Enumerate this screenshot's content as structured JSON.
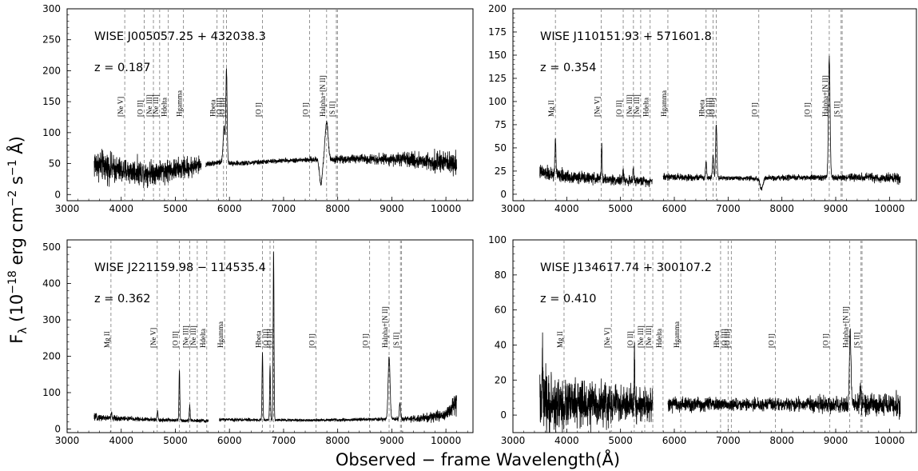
{
  "figure": {
    "xlabel": "Observed − frame Wavelength(Å)",
    "ylabel_main": "F",
    "ylabel_sub": "λ",
    "ylabel_units": " (10",
    "ylabel_exp1": "−18",
    "ylabel_mid": " erg cm",
    "ylabel_exp2": "−2",
    "ylabel_s": " s",
    "ylabel_exp3": "−1",
    "ylabel_end": " Å)"
  },
  "chart_data": [
    {
      "type": "line",
      "object": "WISE J005057.25 + 432038.3",
      "redshift": "z  =  0.187",
      "xlim": [
        3000,
        10500
      ],
      "ylim": [
        -10,
        300
      ],
      "xticks": [
        3000,
        4000,
        5000,
        6000,
        7000,
        8000,
        9000,
        10000
      ],
      "yticks": [
        0,
        50,
        100,
        150,
        200,
        250,
        300
      ],
      "continuum": [
        [
          3500,
          50
        ],
        [
          4000,
          38
        ],
        [
          4500,
          36
        ],
        [
          5000,
          40
        ],
        [
          5500,
          48
        ],
        [
          5800,
          52
        ],
        [
          6200,
          50
        ],
        [
          7000,
          55
        ],
        [
          7500,
          56
        ],
        [
          8000,
          57
        ],
        [
          8500,
          58
        ],
        [
          9000,
          57
        ],
        [
          9500,
          55
        ],
        [
          10200,
          50
        ]
      ],
      "noise": [
        [
          3500,
          22
        ],
        [
          4000,
          18
        ],
        [
          5400,
          14
        ],
        [
          5550,
          4
        ],
        [
          7000,
          3
        ],
        [
          8000,
          5
        ],
        [
          9000,
          8
        ],
        [
          10200,
          16
        ]
      ],
      "gaps": [
        [
          5480,
          5560
        ]
      ],
      "emission": [
        {
          "x": 5900,
          "h": 55,
          "w": 18
        },
        {
          "x": 5945,
          "h": 148,
          "w": 12
        },
        {
          "x": 7795,
          "h": 60,
          "w": 28
        }
      ],
      "absorption": [
        {
          "x": 7690,
          "h": 40,
          "w": 25
        }
      ],
      "lines": [
        {
          "label": "[Ne V]",
          "x": 4065
        },
        {
          "label": "[O II]",
          "x": 4425
        },
        {
          "label": "[Ne III]",
          "x": 4595
        },
        {
          "label": "[Ne III]",
          "x": 4710
        },
        {
          "label": "Hdelta",
          "x": 4870
        },
        {
          "label": "Hgamma",
          "x": 5150
        },
        {
          "label": "Hbeta",
          "x": 5770
        },
        {
          "label": "[O III]",
          "x": 5890
        },
        {
          "label": "[O III]",
          "x": 5945
        },
        {
          "label": "[O I]",
          "x": 6610
        },
        {
          "label": "[O I]",
          "x": 7480
        },
        {
          "label": "Halpha+[N II]",
          "x": 7795
        },
        {
          "label": "[S II]",
          "x": 7975
        },
        {
          "label": "",
          "x": 7995
        }
      ]
    },
    {
      "type": "line",
      "object": "WISE J110151.93 + 571601.8",
      "redshift": "z  =  0.354",
      "xlim": [
        3000,
        10500
      ],
      "ylim": [
        -7,
        200
      ],
      "xticks": [
        3000,
        4000,
        5000,
        6000,
        7000,
        8000,
        9000,
        10000
      ],
      "yticks": [
        0,
        25,
        50,
        75,
        100,
        125,
        150,
        175,
        200
      ],
      "continuum": [
        [
          3500,
          24
        ],
        [
          3800,
          20
        ],
        [
          4500,
          17
        ],
        [
          5000,
          15
        ],
        [
          5600,
          14
        ],
        [
          5800,
          19
        ],
        [
          6500,
          18
        ],
        [
          7500,
          17
        ],
        [
          8500,
          18
        ],
        [
          9500,
          18
        ],
        [
          10200,
          17
        ]
      ],
      "noise": [
        [
          3500,
          7
        ],
        [
          4500,
          5
        ],
        [
          5600,
          4
        ],
        [
          7000,
          2
        ],
        [
          9000,
          3
        ],
        [
          10200,
          5
        ]
      ],
      "gaps": [
        [
          5590,
          5790
        ]
      ],
      "emission": [
        {
          "x": 3790,
          "h": 40,
          "w": 10
        },
        {
          "x": 4650,
          "h": 37,
          "w": 8
        },
        {
          "x": 5050,
          "h": 10,
          "w": 8
        },
        {
          "x": 5240,
          "h": 12,
          "w": 8
        },
        {
          "x": 6590,
          "h": 18,
          "w": 10
        },
        {
          "x": 6720,
          "h": 25,
          "w": 12
        },
        {
          "x": 6780,
          "h": 58,
          "w": 12
        },
        {
          "x": 8880,
          "h": 128,
          "w": 15
        }
      ],
      "absorption": [
        {
          "x": 7620,
          "h": 12,
          "w": 25
        }
      ],
      "lines": [
        {
          "label": "Mg II",
          "x": 3790
        },
        {
          "label": "[Ne V]",
          "x": 4640
        },
        {
          "label": "[O II]",
          "x": 5050
        },
        {
          "label": "[Ne III]",
          "x": 5240
        },
        {
          "label": "[Ne III]",
          "x": 5375
        },
        {
          "label": "Hdelta",
          "x": 5550
        },
        {
          "label": "Hgamma",
          "x": 5880
        },
        {
          "label": "Hbeta",
          "x": 6590
        },
        {
          "label": "[O III]",
          "x": 6720
        },
        {
          "label": "[O III]",
          "x": 6780
        },
        {
          "label": "[O I]",
          "x": 7570
        },
        {
          "label": "[O I]",
          "x": 8550
        },
        {
          "label": "Halpha+[N II]",
          "x": 8880
        },
        {
          "label": "[S II]",
          "x": 9100
        },
        {
          "label": "",
          "x": 9120
        }
      ]
    },
    {
      "type": "line",
      "object": "WISE J221159.98 − 114535.4",
      "redshift": "z  =  0.362",
      "xlim": [
        3000,
        10500
      ],
      "ylim": [
        -10,
        520
      ],
      "xticks": [
        3000,
        4000,
        5000,
        6000,
        7000,
        8000,
        9000,
        10000
      ],
      "yticks": [
        0,
        100,
        200,
        300,
        400,
        500
      ],
      "continuum": [
        [
          3500,
          32
        ],
        [
          3800,
          30
        ],
        [
          4500,
          26
        ],
        [
          5000,
          24
        ],
        [
          5600,
          22
        ],
        [
          5800,
          26
        ],
        [
          6500,
          25
        ],
        [
          7500,
          24
        ],
        [
          8500,
          26
        ],
        [
          9500,
          28
        ],
        [
          10000,
          40
        ],
        [
          10200,
          75
        ]
      ],
      "noise": [
        [
          3500,
          8
        ],
        [
          4500,
          5
        ],
        [
          5600,
          4
        ],
        [
          7000,
          3
        ],
        [
          9000,
          4
        ],
        [
          10000,
          15
        ],
        [
          10200,
          25
        ]
      ],
      "gaps": [
        [
          5610,
          5810
        ]
      ],
      "emission": [
        {
          "x": 3820,
          "h": 12,
          "w": 10
        },
        {
          "x": 4670,
          "h": 25,
          "w": 8
        },
        {
          "x": 5075,
          "h": 135,
          "w": 8
        },
        {
          "x": 5265,
          "h": 40,
          "w": 8
        },
        {
          "x": 6610,
          "h": 185,
          "w": 8
        },
        {
          "x": 6750,
          "h": 150,
          "w": 8
        },
        {
          "x": 6815,
          "h": 465,
          "w": 8
        },
        {
          "x": 8950,
          "h": 170,
          "w": 18
        },
        {
          "x": 9150,
          "h": 40,
          "w": 12
        }
      ],
      "absorption": [],
      "lines": [
        {
          "label": "Mg II",
          "x": 3810
        },
        {
          "label": "[Ne V]",
          "x": 4665
        },
        {
          "label": "[O II]",
          "x": 5075
        },
        {
          "label": "[Ne III]",
          "x": 5265
        },
        {
          "label": "[Ne III]",
          "x": 5405
        },
        {
          "label": "Hdelta",
          "x": 5580
        },
        {
          "label": "Hgamma",
          "x": 5910
        },
        {
          "label": "Hbeta",
          "x": 6610
        },
        {
          "label": "[O III]",
          "x": 6750
        },
        {
          "label": "[O III]",
          "x": 6815
        },
        {
          "label": "[O I]",
          "x": 7600
        },
        {
          "label": "[O I]",
          "x": 8590
        },
        {
          "label": "Halpha+[N II]",
          "x": 8950
        },
        {
          "label": "[S II]",
          "x": 9160
        },
        {
          "label": "",
          "x": 9180
        }
      ]
    },
    {
      "type": "line",
      "object": "WISE J134617.74 + 300107.2",
      "redshift": "z  =  0.410",
      "xlim": [
        3000,
        10500
      ],
      "ylim": [
        -10,
        100
      ],
      "xticks": [
        3000,
        4000,
        5000,
        6000,
        7000,
        8000,
        9000,
        10000
      ],
      "yticks": [
        0,
        20,
        40,
        60,
        80,
        100
      ],
      "continuum": [
        [
          3500,
          6
        ],
        [
          4500,
          6
        ],
        [
          5500,
          6
        ],
        [
          6500,
          6
        ],
        [
          7500,
          6
        ],
        [
          8500,
          6
        ],
        [
          9500,
          6
        ],
        [
          10200,
          6
        ]
      ],
      "noise": [
        [
          3500,
          16
        ],
        [
          4000,
          12
        ],
        [
          5000,
          9
        ],
        [
          5500,
          8
        ],
        [
          5800,
          4
        ],
        [
          7000,
          3
        ],
        [
          8000,
          3
        ],
        [
          9000,
          4
        ],
        [
          10200,
          6
        ]
      ],
      "gaps": [
        [
          5600,
          5880
        ]
      ],
      "emission": [
        {
          "x": 3550,
          "h": 30,
          "w": 6
        },
        {
          "x": 5260,
          "h": 32,
          "w": 6
        },
        {
          "x": 9270,
          "h": 42,
          "w": 14
        },
        {
          "x": 9460,
          "h": 10,
          "w": 10
        }
      ],
      "absorption": [],
      "lines": [
        {
          "label": "Mg II",
          "x": 3950
        },
        {
          "label": "[Ne V]",
          "x": 4830
        },
        {
          "label": "[O II]",
          "x": 5255
        },
        {
          "label": "[Ne III]",
          "x": 5450
        },
        {
          "label": "[Ne III]",
          "x": 5600
        },
        {
          "label": "Hdelta",
          "x": 5790
        },
        {
          "label": "Hgamma",
          "x": 6120
        },
        {
          "label": "Hbeta",
          "x": 6860
        },
        {
          "label": "[O III]",
          "x": 7000
        },
        {
          "label": "[O III]",
          "x": 7060
        },
        {
          "label": "[O I]",
          "x": 7880
        },
        {
          "label": "[O I]",
          "x": 8890
        },
        {
          "label": "Halpha+[N II]",
          "x": 9260
        },
        {
          "label": "[S II]",
          "x": 9470
        },
        {
          "label": "",
          "x": 9490
        }
      ]
    }
  ]
}
